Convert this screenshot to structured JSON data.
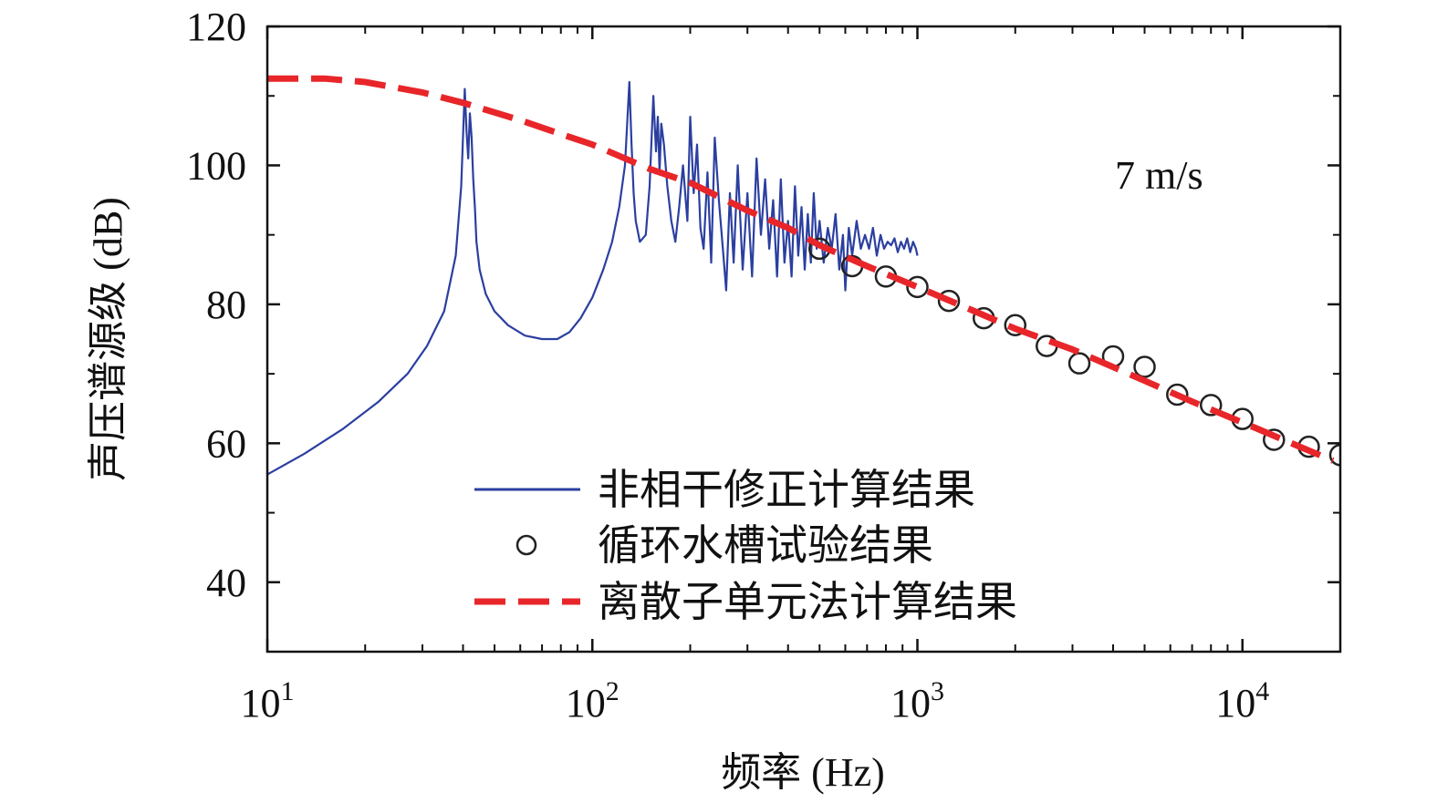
{
  "chart_data": {
    "type": "line",
    "xlabel": "频率 (Hz)",
    "ylabel": "声压谱源级 (dB)",
    "x_scale": "log",
    "xlim": [
      10,
      20000
    ],
    "ylim": [
      30,
      120
    ],
    "grid": false,
    "legend_position": "bottom-left",
    "annotation": "7 m/s",
    "x_ticks": [
      {
        "value": 10,
        "base": "10",
        "exp": "1"
      },
      {
        "value": 100,
        "base": "10",
        "exp": "2"
      },
      {
        "value": 1000,
        "base": "10",
        "exp": "3"
      },
      {
        "value": 10000,
        "base": "10",
        "exp": "4"
      }
    ],
    "y_ticks": [
      {
        "value": 40,
        "label": "40"
      },
      {
        "value": 60,
        "label": "60"
      },
      {
        "value": 80,
        "label": "80"
      },
      {
        "value": 100,
        "label": "100"
      },
      {
        "value": 120,
        "label": "120"
      }
    ],
    "series": [
      {
        "name": "非相干修正计算结果",
        "style": "solid-line",
        "color": "#2b3fa0",
        "x": [
          10,
          13,
          17,
          22,
          27,
          31,
          35,
          38,
          39.5,
          40.5,
          41,
          41.5,
          42,
          42.5,
          43,
          43.5,
          44,
          45,
          47,
          50,
          55,
          62,
          70,
          78,
          85,
          92,
          100,
          108,
          115,
          121,
          126,
          130,
          132,
          134,
          136,
          140,
          146,
          150,
          154,
          157,
          159,
          161,
          163,
          166,
          170,
          175,
          180,
          185,
          190,
          196,
          200,
          205,
          210,
          215,
          220,
          226,
          232,
          238,
          245,
          252,
          258,
          265,
          272,
          280,
          290,
          300,
          310,
          320,
          330,
          340,
          350,
          360,
          370,
          380,
          390,
          400,
          410,
          420,
          430,
          440,
          450,
          460,
          470,
          480,
          490,
          500,
          515,
          530,
          545,
          560,
          575,
          590,
          600,
          615,
          630,
          650,
          670,
          690,
          710,
          730,
          750,
          770,
          790,
          810,
          830,
          850,
          870,
          890,
          910,
          930,
          950,
          970,
          990,
          1000
        ],
        "y": [
          55.5,
          58.5,
          62,
          66,
          70,
          74,
          79,
          87,
          97,
          111,
          105,
          101,
          107.5,
          104,
          98,
          94,
          89,
          85,
          81.5,
          79,
          77,
          75.5,
          75,
          75,
          76,
          78,
          81,
          85,
          89,
          94,
          100,
          112,
          103,
          96,
          92,
          89,
          90,
          97,
          110,
          102,
          107,
          99,
          106,
          103,
          97,
          92,
          89,
          94,
          100,
          92,
          107,
          96,
          103,
          91,
          88,
          99,
          86,
          104,
          95,
          88,
          82,
          96,
          86,
          100,
          85,
          96,
          84,
          101,
          90,
          98,
          88,
          95,
          84,
          98,
          86,
          92,
          84,
          97,
          87,
          94,
          85,
          93,
          86,
          96,
          88,
          92,
          86,
          91,
          88,
          93,
          85,
          90,
          82,
          91,
          87,
          92,
          88,
          90,
          88,
          91,
          87,
          90,
          88,
          89,
          88.5,
          89.5,
          87.5,
          89,
          88,
          89.5,
          87.5,
          89,
          88,
          87
        ]
      },
      {
        "name": "循环水槽试验结果",
        "style": "open-circle",
        "color": "#222222",
        "x": [
          500,
          630,
          800,
          1000,
          1250,
          1600,
          2000,
          2500,
          3150,
          4000,
          5000,
          6300,
          8000,
          10000,
          12500,
          16000,
          20000
        ],
        "y": [
          88,
          85.5,
          84,
          82.5,
          80.5,
          78,
          77,
          74,
          71.5,
          72.5,
          71,
          67,
          65.5,
          63.5,
          60.5,
          59.5,
          58.3
        ]
      },
      {
        "name": "离散子单元法计算结果",
        "style": "dashed-line",
        "color": "#e8262a",
        "x": [
          10,
          15,
          20,
          30,
          40,
          60,
          80,
          100,
          150,
          200,
          300,
          400,
          500,
          700,
          1000,
          1500,
          2000,
          3000,
          5000,
          7000,
          10000,
          15000,
          19000
        ],
        "y": [
          112.5,
          112.5,
          112,
          110.5,
          109,
          106.5,
          104.5,
          103,
          99.5,
          97.5,
          93.5,
          91,
          88.5,
          85.5,
          82.5,
          79,
          76.5,
          73.5,
          69,
          66,
          63,
          59.5,
          57.5
        ]
      }
    ]
  }
}
